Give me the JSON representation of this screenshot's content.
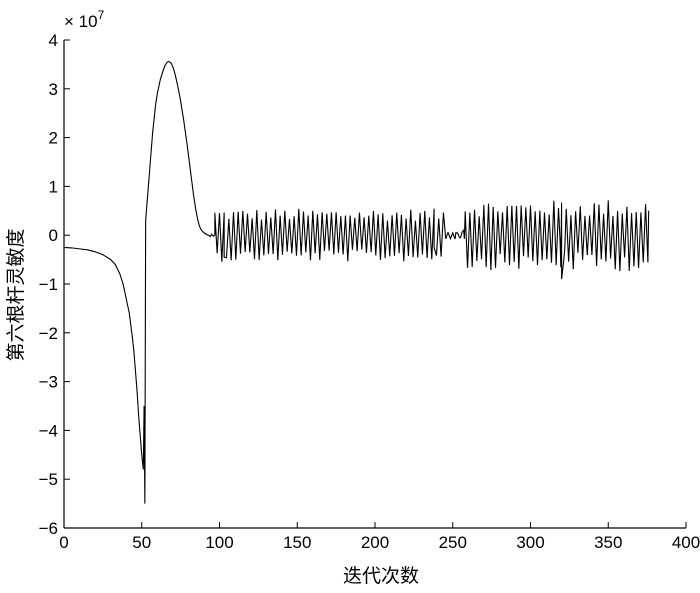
{
  "chart_data": {
    "type": "line",
    "title": "",
    "xlabel": "迭代次数",
    "ylabel": "第六根杆灵敏度",
    "y_multiplier_label": "× 10",
    "y_multiplier_exponent": "7",
    "xlim": [
      0,
      400
    ],
    "ylim": [
      -6,
      4
    ],
    "xticks": [
      "0",
      "50",
      "100",
      "150",
      "200",
      "250",
      "300",
      "350",
      "400"
    ],
    "yticks": [
      "−6",
      "−5",
      "−4",
      "−3",
      "−2",
      "−1",
      "0",
      "1",
      "2",
      "3",
      "4"
    ],
    "grid": false,
    "legend": "none",
    "line_color": "#000000",
    "series": [
      {
        "x": [
          0,
          5,
          10,
          15,
          20,
          25,
          30,
          33,
          36,
          38,
          40,
          42,
          44,
          45,
          46,
          47,
          48,
          49,
          50,
          51,
          51.5,
          52,
          52.5,
          53,
          54,
          55,
          56,
          57,
          58,
          59,
          60,
          61,
          62,
          63,
          64,
          65,
          66,
          67,
          68,
          69,
          70,
          71,
          72,
          73,
          74,
          75,
          76,
          77,
          78,
          79,
          80,
          81,
          82,
          83,
          84,
          85,
          86,
          87,
          88,
          89,
          90,
          91,
          92,
          93,
          94,
          95,
          96,
          97
        ],
        "y": [
          -0.25,
          -0.26,
          -0.28,
          -0.3,
          -0.34,
          -0.4,
          -0.5,
          -0.6,
          -0.8,
          -1.0,
          -1.3,
          -1.6,
          -2.1,
          -2.4,
          -2.8,
          -3.2,
          -3.7,
          -4.1,
          -4.5,
          -4.8,
          -3.5,
          -5.5,
          0.3,
          0.5,
          0.9,
          1.3,
          1.7,
          2.1,
          2.4,
          2.7,
          2.9,
          3.05,
          3.2,
          3.3,
          3.4,
          3.48,
          3.53,
          3.56,
          3.55,
          3.52,
          3.45,
          3.35,
          3.22,
          3.08,
          2.92,
          2.75,
          2.55,
          2.35,
          2.12,
          1.9,
          1.65,
          1.4,
          1.15,
          0.9,
          0.68,
          0.48,
          0.32,
          0.2,
          0.12,
          0.08,
          0.05,
          0.03,
          0.01,
          0.0,
          -0.03,
          0.02,
          -0.02,
          0.0
        ]
      }
    ],
    "oscillation_segments": [
      {
        "x_start": 97,
        "x_end": 258,
        "step": 1.5,
        "amplitude": 0.42,
        "spread": 0.3
      },
      {
        "x_start": 258,
        "x_end": 320,
        "step": 1.5,
        "amplitude": 0.55,
        "spread": 0.3
      },
      {
        "x_start": 320,
        "x_end": 376,
        "step": 1.5,
        "amplitude": 0.55,
        "spread": 0.35
      }
    ],
    "features": [
      {
        "x": 98,
        "y": -0.1
      },
      {
        "x": 103,
        "y": -0.45
      },
      {
        "x": 238,
        "y": -0.25
      },
      {
        "x": 247,
        "y": 0.05
      },
      {
        "x": 252,
        "y": 0.05
      },
      {
        "x": 255,
        "y": -0.05
      },
      {
        "x": 257,
        "y": 0.1
      },
      {
        "x": 319,
        "y": -0.1
      },
      {
        "x": 320,
        "y": -0.9
      },
      {
        "x": 322,
        "y": -0.3
      },
      {
        "x": 376,
        "y": 0.5
      }
    ]
  }
}
